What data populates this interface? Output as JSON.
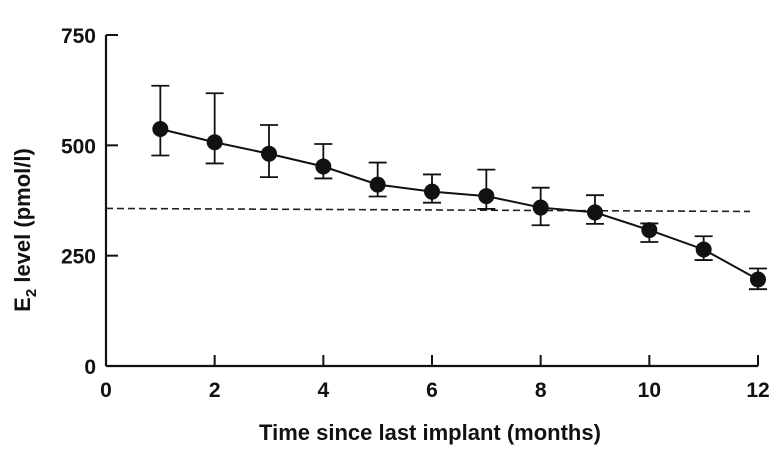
{
  "chart_data": {
    "type": "line",
    "title": "",
    "xlabel": "Time since last implant (months)",
    "ylabel_main": "E",
    "ylabel_sub": "2",
    "ylabel_rest": " level (pmol/l)",
    "xlim": [
      0,
      12
    ],
    "ylim": [
      0,
      750
    ],
    "xticks": [
      0,
      2,
      4,
      6,
      8,
      10,
      12
    ],
    "yticks": [
      0,
      250,
      500,
      750
    ],
    "series": [
      {
        "name": "E2 level",
        "x": [
          1,
          2,
          3,
          4,
          5,
          6,
          7,
          8,
          9,
          10,
          11,
          12
        ],
        "y": [
          537,
          507,
          481,
          452,
          411,
          395,
          385,
          359,
          348,
          308,
          264,
          196
        ],
        "err_upper": [
          635,
          618,
          546,
          503,
          461,
          434,
          445,
          404,
          387,
          323,
          294,
          221
        ],
        "err_lower": [
          477,
          459,
          428,
          425,
          384,
          370,
          356,
          319,
          322,
          281,
          240,
          174
        ]
      }
    ],
    "reference_line": {
      "y": 357,
      "x_start": 0,
      "x_end": 12,
      "style": "dashed"
    },
    "grid": false,
    "legend": "none"
  }
}
